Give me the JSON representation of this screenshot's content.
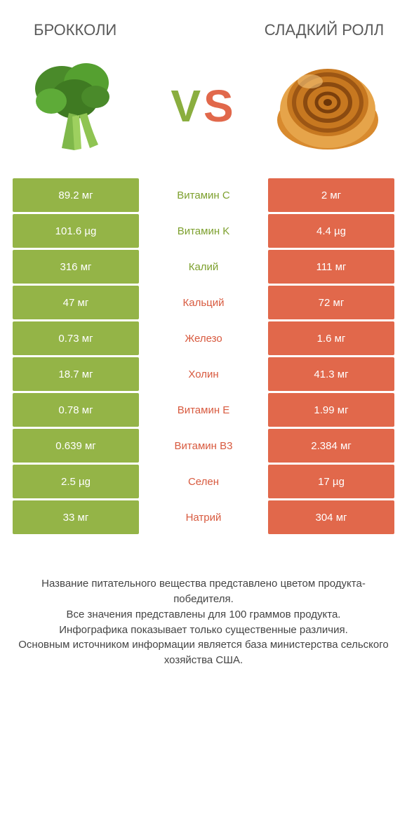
{
  "colors": {
    "green": "#94b447",
    "red": "#e1684b",
    "green_text": "#7da02e",
    "red_text": "#d85a3f"
  },
  "header": {
    "left_title": "БРОККОЛИ",
    "right_title": "СЛАДКИЙ РОЛЛ",
    "vs_v": "V",
    "vs_s": "S"
  },
  "rows": [
    {
      "left": "89.2 мг",
      "mid": "Витамин C",
      "right": "2 мг",
      "winner": "left"
    },
    {
      "left": "101.6 µg",
      "mid": "Витамин K",
      "right": "4.4 µg",
      "winner": "left"
    },
    {
      "left": "316 мг",
      "mid": "Калий",
      "right": "111 мг",
      "winner": "left"
    },
    {
      "left": "47 мг",
      "mid": "Кальций",
      "right": "72 мг",
      "winner": "right"
    },
    {
      "left": "0.73 мг",
      "mid": "Железо",
      "right": "1.6 мг",
      "winner": "right"
    },
    {
      "left": "18.7 мг",
      "mid": "Холин",
      "right": "41.3 мг",
      "winner": "right"
    },
    {
      "left": "0.78 мг",
      "mid": "Витамин E",
      "right": "1.99 мг",
      "winner": "right"
    },
    {
      "left": "0.639 мг",
      "mid": "Витамин B3",
      "right": "2.384 мг",
      "winner": "right"
    },
    {
      "left": "2.5 µg",
      "mid": "Селен",
      "right": "17 µg",
      "winner": "right"
    },
    {
      "left": "33 мг",
      "mid": "Натрий",
      "right": "304 мг",
      "winner": "right"
    }
  ],
  "footer": {
    "line1": "Название питательного вещества представлено цветом продукта-победителя.",
    "line2": "Все значения представлены для 100 граммов продукта.",
    "line3": "Инфографика показывает только существенные различия.",
    "line4": "Основным источником информации является база министерства сельского хозяйства США."
  }
}
